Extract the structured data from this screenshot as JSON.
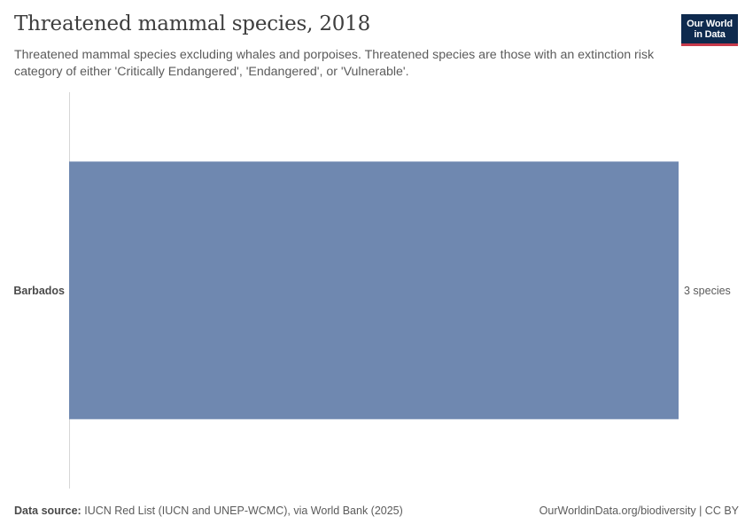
{
  "header": {
    "title": "Threatened mammal species, 2018",
    "subtitle": "Threatened mammal species excluding whales and porpoises. Threatened species are those with an extinction risk category of either 'Critically Endangered', 'Endangered', or 'Vulnerable'."
  },
  "logo": {
    "line1": "Our World",
    "line2": "in Data",
    "background": "#0e2a4e",
    "accent": "#c73a4b"
  },
  "chart_data": {
    "type": "bar",
    "orientation": "horizontal",
    "title": "Threatened mammal species, 2018",
    "categories": [
      "Barbados"
    ],
    "values": [
      3
    ],
    "value_labels": [
      "3 species"
    ],
    "unit": "species",
    "xlim": [
      0,
      3
    ],
    "bar_color": "#6f88b0",
    "grid": false
  },
  "footer": {
    "source_label": "Data source:",
    "source_text": "IUCN Red List (IUCN and UNEP-WCMC), via World Bank (2025)",
    "url_license": "OurWorldinData.org/biodiversity | CC BY"
  }
}
